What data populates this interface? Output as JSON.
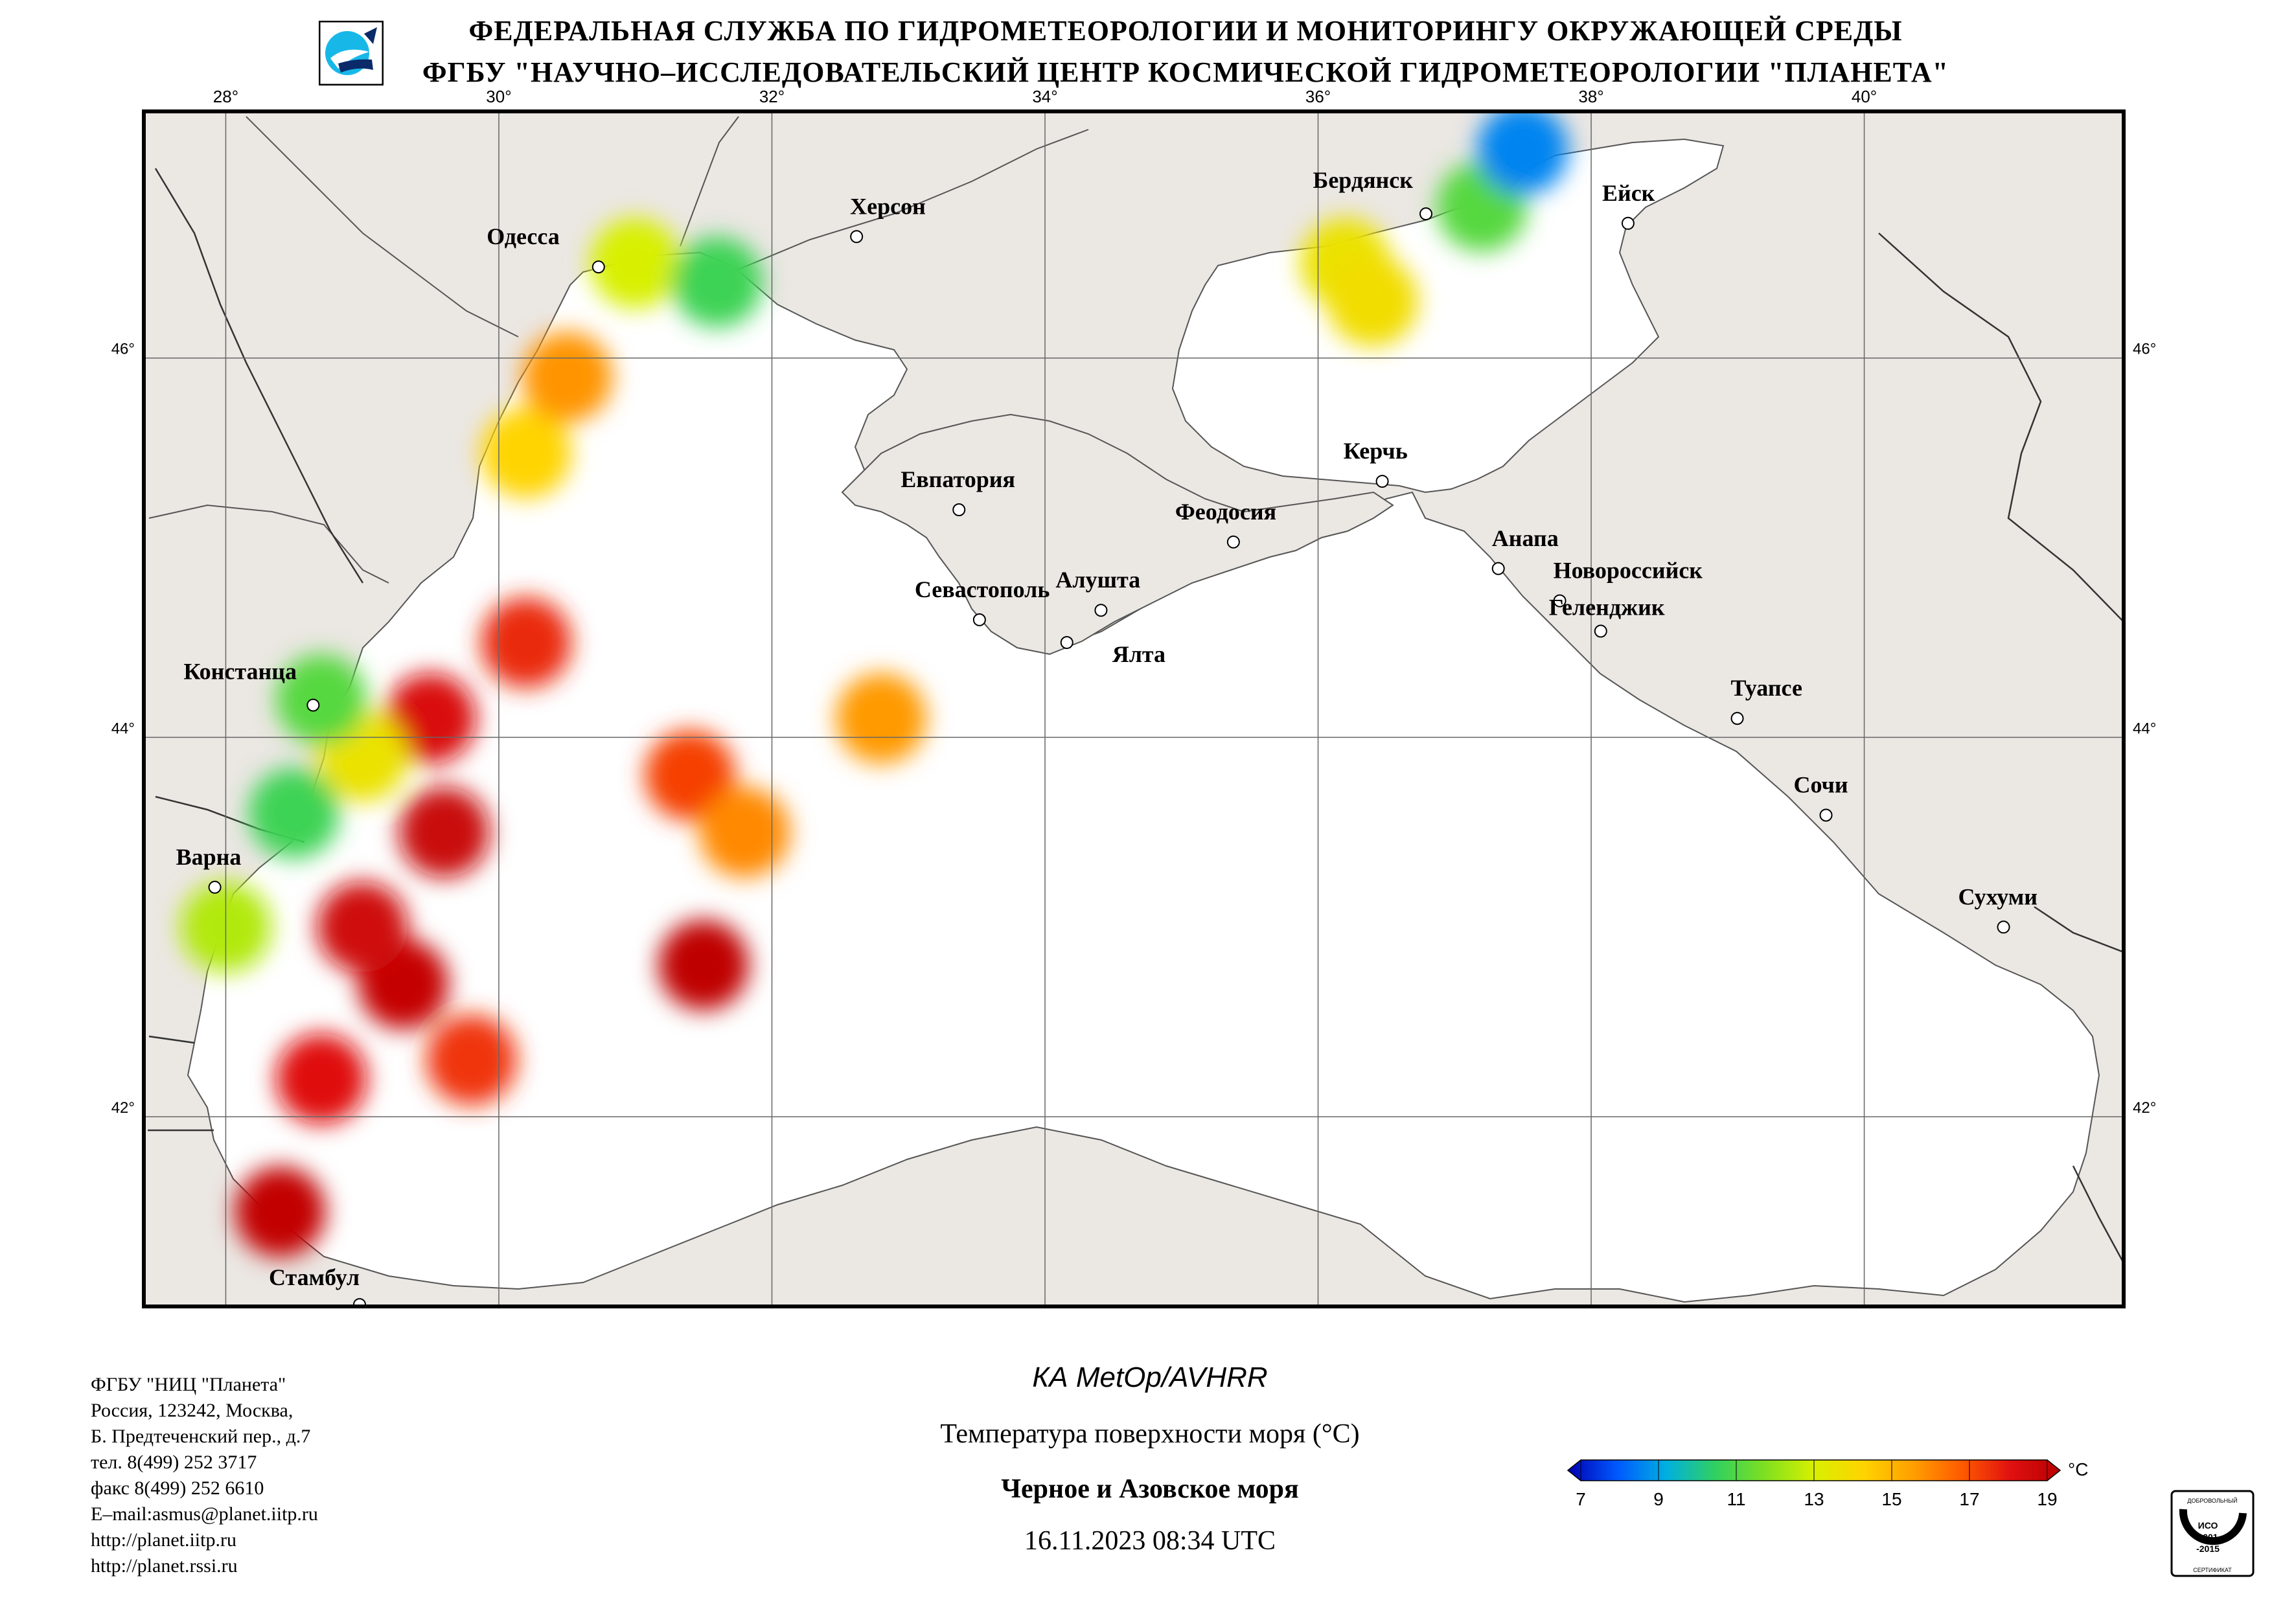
{
  "header": {
    "line1": "ФЕДЕРАЛЬНАЯ СЛУЖБА ПО ГИДРОМЕТЕОРОЛОГИИ И МОНИТОРИНГУ ОКРУЖАЮЩЕЙ СРЕДЫ",
    "line2": "ФГБУ \"НАУЧНО–ИССЛЕДОВАТЕЛЬСКИЙ ЦЕНТР КОСМИЧЕСКОЙ ГИДРОМЕТЕОРОЛОГИИ \"ПЛАНЕТА\"",
    "logo_icon": "planeta-logo-icon"
  },
  "map": {
    "lon_range": [
      27.4,
      41.9
    ],
    "lat_range": [
      41.0,
      47.3
    ],
    "lon_ticks": [
      "28°",
      "30°",
      "32°",
      "34°",
      "36°",
      "38°",
      "40°"
    ],
    "lat_ticks": [
      "46°",
      "44°",
      "42°"
    ],
    "colors": {
      "land": "#ebe7e3",
      "sea": "#ffffff",
      "border": "#000000"
    },
    "cities": [
      {
        "name": "Одесса",
        "lon": 30.73,
        "lat": 46.48
      },
      {
        "name": "Херсон",
        "lon": 32.62,
        "lat": 46.64
      },
      {
        "name": "Бердянск",
        "lon": 36.79,
        "lat": 46.76
      },
      {
        "name": "Ейск",
        "lon": 38.27,
        "lat": 46.71
      },
      {
        "name": "Евпатория",
        "lon": 33.37,
        "lat": 45.2
      },
      {
        "name": "Керчь",
        "lon": 36.47,
        "lat": 45.35
      },
      {
        "name": "Феодосия",
        "lon": 35.38,
        "lat": 45.03
      },
      {
        "name": "Анапа",
        "lon": 37.32,
        "lat": 44.89
      },
      {
        "name": "Новороссийск",
        "lon": 37.77,
        "lat": 44.72
      },
      {
        "name": "Геленджик",
        "lon": 38.07,
        "lat": 44.56
      },
      {
        "name": "Севастополь",
        "lon": 33.52,
        "lat": 44.62
      },
      {
        "name": "Алушта",
        "lon": 34.41,
        "lat": 44.67
      },
      {
        "name": "Ялта",
        "lon": 34.16,
        "lat": 44.5
      },
      {
        "name": "Констанца",
        "lon": 28.64,
        "lat": 44.17
      },
      {
        "name": "Туапсе",
        "lon": 39.07,
        "lat": 44.1
      },
      {
        "name": "Сочи",
        "lon": 39.72,
        "lat": 43.59
      },
      {
        "name": "Варна",
        "lon": 27.92,
        "lat": 43.21
      },
      {
        "name": "Сухуми",
        "lon": 41.02,
        "lat": 43.0
      },
      {
        "name": "Стамбул",
        "lon": 28.98,
        "lat": 41.01
      }
    ],
    "sst_patches": [
      {
        "lon": 29.3,
        "lat": 42.7,
        "value": 18.6
      },
      {
        "lon": 29.0,
        "lat": 43.0,
        "value": 18.3
      },
      {
        "lon": 29.6,
        "lat": 43.5,
        "value": 18.5
      },
      {
        "lon": 29.5,
        "lat": 44.1,
        "value": 18.0
      },
      {
        "lon": 30.2,
        "lat": 44.5,
        "value": 17.4
      },
      {
        "lon": 28.4,
        "lat": 41.5,
        "value": 18.7
      },
      {
        "lon": 28.7,
        "lat": 42.2,
        "value": 17.8
      },
      {
        "lon": 29.8,
        "lat": 42.3,
        "value": 17.2
      },
      {
        "lon": 31.4,
        "lat": 43.8,
        "value": 17.0
      },
      {
        "lon": 31.8,
        "lat": 43.5,
        "value": 15.8
      },
      {
        "lon": 31.5,
        "lat": 42.8,
        "value": 18.8
      },
      {
        "lon": 29.0,
        "lat": 43.9,
        "value": 13.6
      },
      {
        "lon": 28.7,
        "lat": 44.2,
        "value": 11.2
      },
      {
        "lon": 28.5,
        "lat": 43.6,
        "value": 10.8
      },
      {
        "lon": 28.0,
        "lat": 43.0,
        "value": 12.5
      },
      {
        "lon": 30.2,
        "lat": 45.5,
        "value": 14.2
      },
      {
        "lon": 30.5,
        "lat": 45.9,
        "value": 15.6
      },
      {
        "lon": 31.0,
        "lat": 46.5,
        "value": 13.0
      },
      {
        "lon": 31.6,
        "lat": 46.4,
        "value": 10.8
      },
      {
        "lon": 36.2,
        "lat": 46.5,
        "value": 13.6
      },
      {
        "lon": 36.4,
        "lat": 46.3,
        "value": 13.8
      },
      {
        "lon": 37.2,
        "lat": 46.8,
        "value": 11.2
      },
      {
        "lon": 37.5,
        "lat": 47.1,
        "value": 8.8
      },
      {
        "lon": 32.8,
        "lat": 44.1,
        "value": 15.5
      }
    ]
  },
  "caption": {
    "satellite": "КА MetOp/AVHRR",
    "parameter": "Температура поверхности моря (°С)",
    "region": "Черное и Азовское моря",
    "datetime": "16.11.2023 08:34 UTC"
  },
  "colorbar": {
    "min": 7,
    "max": 19,
    "ticks": [
      "7",
      "9",
      "11",
      "13",
      "15",
      "17",
      "19"
    ],
    "unit": "°С",
    "stops": [
      "#0000b0",
      "#0058ff",
      "#00b0e0",
      "#30d060",
      "#7ee020",
      "#d8f000",
      "#ffd400",
      "#ffa000",
      "#ff5a00",
      "#e01010",
      "#b80000"
    ]
  },
  "contacts": [
    "ФГБУ \"НИЦ \"Планета\"",
    "Россия, 123242, Москва,",
    "Б. Предтеченский пер., д.7",
    "тел. 8(499) 252 3717",
    "факс 8(499) 252 6610",
    "E–mail:asmus@planet.iitp.ru",
    "http://planet.iitp.ru",
    "http://planet.rssi.ru"
  ],
  "certificate": {
    "icon": "iso-certificate-icon",
    "line1": "ДОБРОВОЛЬНЫЙ",
    "line2": "ИСО",
    "line3": "9001",
    "line4": "-2015",
    "line5": "СЕРТИФИКАТ"
  }
}
